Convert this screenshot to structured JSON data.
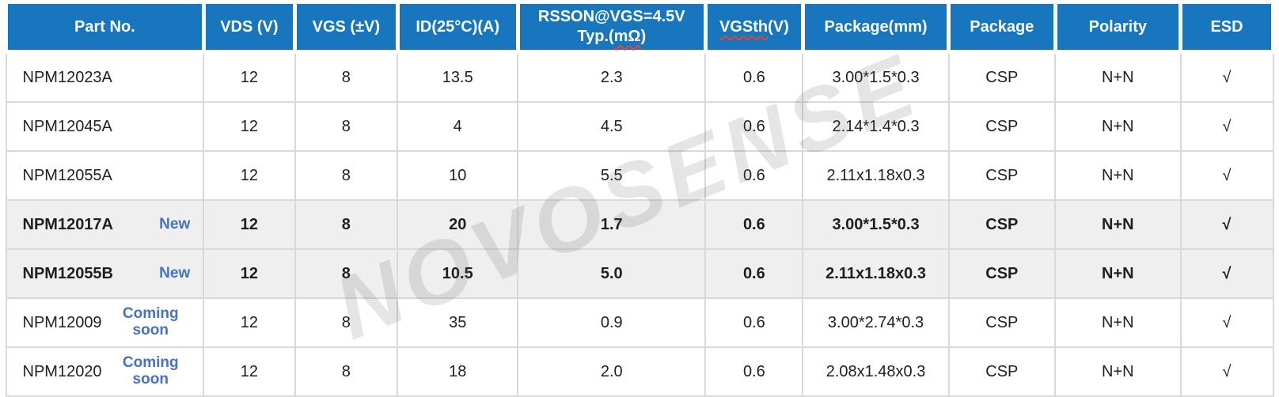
{
  "accent_color": "#1776be",
  "tag_color": "#4472c4",
  "highlight_color": "#efefef",
  "check_glyph": "√",
  "watermark": {
    "text": "NOVOSENSE"
  },
  "table": {
    "columns": [
      {
        "id": "part",
        "segments": [
          {
            "t": "Part No."
          }
        ]
      },
      {
        "id": "vds",
        "segments": [
          {
            "t": "VDS (V)"
          }
        ]
      },
      {
        "id": "vgs",
        "segments": [
          {
            "t": "VGS (±V)"
          }
        ]
      },
      {
        "id": "id25",
        "segments": [
          {
            "t": "ID(25°C)(A)"
          }
        ]
      },
      {
        "id": "rsson",
        "segments": [
          {
            "t": "RSSON@VGS=4.5V"
          },
          {
            "br": true
          },
          {
            "t": "Typ.("
          },
          {
            "t": "mΩ",
            "wavy": true
          },
          {
            "t": ")"
          }
        ]
      },
      {
        "id": "vgsth",
        "segments": [
          {
            "t": "VGSth",
            "wavy": true
          },
          {
            "t": "(V)"
          }
        ]
      },
      {
        "id": "pkgmm",
        "segments": [
          {
            "t": "Package(mm)"
          }
        ]
      },
      {
        "id": "pkg",
        "segments": [
          {
            "t": "Package"
          }
        ]
      },
      {
        "id": "polarity",
        "segments": [
          {
            "t": "Polarity"
          }
        ]
      },
      {
        "id": "esd",
        "segments": [
          {
            "t": "ESD"
          }
        ]
      }
    ],
    "rows": [
      {
        "part": "NPM12023A",
        "tag": "",
        "highlight": false,
        "vds": "12",
        "vgs": "8",
        "id25": "13.5",
        "rsson": "2.3",
        "vgsth": "0.6",
        "pkgmm": "3.00*1.5*0.3",
        "pkg": "CSP",
        "polarity": "N+N",
        "esd": "√"
      },
      {
        "part": "NPM12045A",
        "tag": "",
        "highlight": false,
        "vds": "12",
        "vgs": "8",
        "id25": "4",
        "rsson": "4.5",
        "vgsth": "0.6",
        "pkgmm": "2.14*1.4*0.3",
        "pkg": "CSP",
        "polarity": "N+N",
        "esd": "√"
      },
      {
        "part": "NPM12055A",
        "tag": "",
        "highlight": false,
        "vds": "12",
        "vgs": "8",
        "id25": "10",
        "rsson": "5.5",
        "vgsth": "0.6",
        "pkgmm": "2.11x1.18x0.3",
        "pkg": "CSP",
        "polarity": "N+N",
        "esd": "√"
      },
      {
        "part": "NPM12017A",
        "tag": "New",
        "highlight": true,
        "vds": "12",
        "vgs": "8",
        "id25": "20",
        "rsson": "1.7",
        "vgsth": "0.6",
        "pkgmm": "3.00*1.5*0.3",
        "pkg": "CSP",
        "polarity": "N+N",
        "esd": "√"
      },
      {
        "part": "NPM12055B",
        "tag": "New",
        "highlight": true,
        "vds": "12",
        "vgs": "8",
        "id25": "10.5",
        "rsson": "5.0",
        "vgsth": "0.6",
        "pkgmm": "2.11x1.18x0.3",
        "pkg": "CSP",
        "polarity": "N+N",
        "esd": "√"
      },
      {
        "part": "NPM12009",
        "tag": "Coming soon",
        "highlight": false,
        "vds": "12",
        "vgs": "8",
        "id25": "35",
        "rsson": "0.9",
        "vgsth": "0.6",
        "pkgmm": "3.00*2.74*0.3",
        "pkg": "CSP",
        "polarity": "N+N",
        "esd": "√"
      },
      {
        "part": "NPM12020",
        "tag": "Coming soon",
        "highlight": false,
        "vds": "12",
        "vgs": "8",
        "id25": "18",
        "rsson": "2.0",
        "vgsth": "0.6",
        "pkgmm": "2.08x1.48x0.3",
        "pkg": "CSP",
        "polarity": "N+N",
        "esd": "√"
      }
    ]
  }
}
